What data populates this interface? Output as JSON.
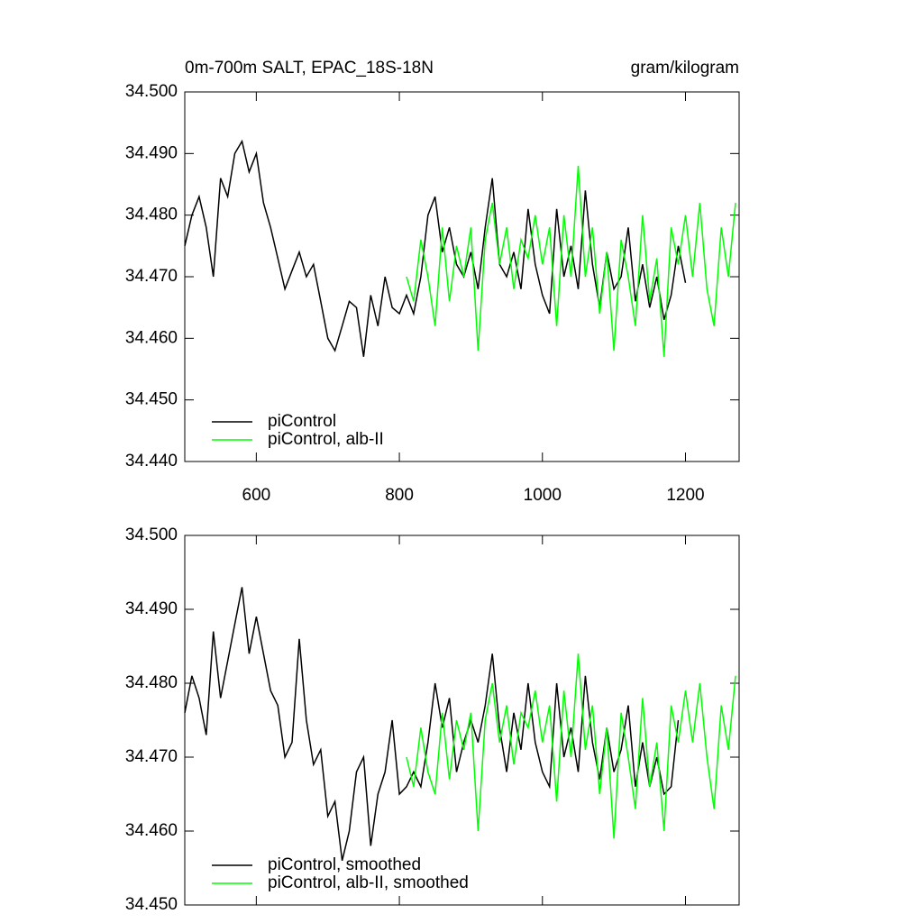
{
  "chart_data": [
    {
      "type": "line",
      "title": "0m-700m SALT, EPAC_18S-18N",
      "units": "gram/kilogram",
      "xlim": [
        500,
        1275
      ],
      "xticks": [
        600,
        800,
        1000,
        1200
      ],
      "xtick_labels": true,
      "ylim": [
        34.44,
        34.5
      ],
      "yticks": [
        {
          "value": 34.44,
          "label": "34.440"
        },
        {
          "value": 34.45,
          "label": "34.450"
        },
        {
          "value": 34.46,
          "label": "34.460"
        },
        {
          "value": 34.47,
          "label": "34.470"
        },
        {
          "value": 34.48,
          "label": "34.480"
        },
        {
          "value": 34.49,
          "label": "34.490"
        },
        {
          "value": 34.5,
          "label": "34.500"
        }
      ],
      "legend": "lower left",
      "series": [
        {
          "name": "piControl",
          "color": "#000000",
          "x": [
            500,
            510,
            520,
            530,
            540,
            550,
            560,
            570,
            580,
            590,
            600,
            610,
            620,
            630,
            640,
            650,
            660,
            670,
            680,
            690,
            700,
            710,
            720,
            730,
            740,
            750,
            760,
            770,
            780,
            790,
            800,
            810,
            820,
            830,
            840,
            850,
            860,
            870,
            880,
            890,
            900,
            910,
            920,
            930,
            940,
            950,
            960,
            970,
            980,
            990,
            1000,
            1010,
            1020,
            1030,
            1040,
            1050,
            1060,
            1070,
            1080,
            1090,
            1100,
            1110,
            1120,
            1130,
            1140,
            1150,
            1160,
            1170,
            1180,
            1190,
            1200
          ],
          "values": [
            34.475,
            34.48,
            34.483,
            34.478,
            34.47,
            34.486,
            34.483,
            34.49,
            34.492,
            34.487,
            34.49,
            34.482,
            34.478,
            34.473,
            34.468,
            34.471,
            34.474,
            34.47,
            34.472,
            34.466,
            34.46,
            34.458,
            34.462,
            34.466,
            34.465,
            34.457,
            34.467,
            34.462,
            34.47,
            34.465,
            34.464,
            34.467,
            34.464,
            34.47,
            34.48,
            34.483,
            34.474,
            34.478,
            34.472,
            34.47,
            34.474,
            34.468,
            34.478,
            34.486,
            34.472,
            34.47,
            34.474,
            34.468,
            34.481,
            34.472,
            34.467,
            34.464,
            34.481,
            34.47,
            34.475,
            34.468,
            34.484,
            34.472,
            34.465,
            34.474,
            34.468,
            34.47,
            34.478,
            34.466,
            34.472,
            34.465,
            34.47,
            34.463,
            34.467,
            34.475,
            34.469
          ]
        },
        {
          "name": "piControl, alb-II",
          "color": "#00ff00",
          "x": [
            810,
            820,
            830,
            840,
            850,
            860,
            870,
            880,
            890,
            900,
            910,
            920,
            930,
            940,
            950,
            960,
            970,
            980,
            990,
            1000,
            1010,
            1020,
            1030,
            1040,
            1050,
            1060,
            1070,
            1080,
            1090,
            1100,
            1110,
            1120,
            1130,
            1140,
            1150,
            1160,
            1170,
            1180,
            1190,
            1200,
            1210,
            1220,
            1230,
            1240,
            1250,
            1260,
            1270
          ],
          "values": [
            34.47,
            34.466,
            34.476,
            34.47,
            34.462,
            34.478,
            34.466,
            34.475,
            34.47,
            34.478,
            34.458,
            34.476,
            34.482,
            34.472,
            34.478,
            34.468,
            34.476,
            34.473,
            34.48,
            34.472,
            34.478,
            34.462,
            34.48,
            34.47,
            34.488,
            34.47,
            34.478,
            34.464,
            34.474,
            34.458,
            34.476,
            34.47,
            34.462,
            34.48,
            34.466,
            34.473,
            34.457,
            34.478,
            34.472,
            34.48,
            34.47,
            34.482,
            34.468,
            34.462,
            34.478,
            34.47,
            34.482
          ]
        }
      ]
    },
    {
      "type": "line",
      "xlim": [
        500,
        1275
      ],
      "xticks": [
        600,
        800,
        1000,
        1200
      ],
      "xtick_labels": false,
      "ylim": [
        34.45,
        34.5
      ],
      "yticks": [
        {
          "value": 34.45,
          "label": "34.450"
        },
        {
          "value": 34.46,
          "label": "34.460"
        },
        {
          "value": 34.47,
          "label": "34.470"
        },
        {
          "value": 34.48,
          "label": "34.480"
        },
        {
          "value": 34.49,
          "label": "34.490"
        },
        {
          "value": 34.5,
          "label": "34.500"
        }
      ],
      "legend": "lower left",
      "series": [
        {
          "name": "piControl, smoothed",
          "color": "#000000",
          "x": [
            500,
            510,
            520,
            530,
            540,
            550,
            560,
            570,
            580,
            590,
            600,
            610,
            620,
            630,
            640,
            650,
            660,
            670,
            680,
            690,
            700,
            710,
            720,
            730,
            740,
            750,
            760,
            770,
            780,
            790,
            800,
            810,
            820,
            830,
            840,
            850,
            860,
            870,
            880,
            890,
            900,
            910,
            920,
            930,
            940,
            950,
            960,
            970,
            980,
            990,
            1000,
            1010,
            1020,
            1030,
            1040,
            1050,
            1060,
            1070,
            1080,
            1090,
            1100,
            1110,
            1120,
            1130,
            1140,
            1150,
            1160,
            1170,
            1180,
            1190
          ],
          "values": [
            34.476,
            34.481,
            34.478,
            34.473,
            34.487,
            34.478,
            34.483,
            34.488,
            34.493,
            34.484,
            34.489,
            34.484,
            34.479,
            34.477,
            34.47,
            34.472,
            34.486,
            34.475,
            34.469,
            34.471,
            34.462,
            34.464,
            34.456,
            34.46,
            34.468,
            34.47,
            34.458,
            34.465,
            34.468,
            34.475,
            34.465,
            34.466,
            34.468,
            34.466,
            34.472,
            34.48,
            34.474,
            34.478,
            34.468,
            34.472,
            34.475,
            34.472,
            34.477,
            34.484,
            34.474,
            34.468,
            34.476,
            34.471,
            34.48,
            34.472,
            34.468,
            34.466,
            34.48,
            34.47,
            34.474,
            34.468,
            34.481,
            34.472,
            34.467,
            34.474,
            34.468,
            34.471,
            34.477,
            34.466,
            34.472,
            34.466,
            34.47,
            34.465,
            34.466,
            34.475
          ]
        },
        {
          "name": "piControl, alb-II, smoothed",
          "color": "#00ff00",
          "x": [
            810,
            820,
            830,
            840,
            850,
            860,
            870,
            880,
            890,
            900,
            910,
            920,
            930,
            940,
            950,
            960,
            970,
            980,
            990,
            1000,
            1010,
            1020,
            1030,
            1040,
            1050,
            1060,
            1070,
            1080,
            1090,
            1100,
            1110,
            1120,
            1130,
            1140,
            1150,
            1160,
            1170,
            1180,
            1190,
            1200,
            1210,
            1220,
            1230,
            1240,
            1250,
            1260,
            1270
          ],
          "values": [
            34.47,
            34.466,
            34.474,
            34.468,
            34.465,
            34.476,
            34.467,
            34.475,
            34.471,
            34.476,
            34.46,
            34.475,
            34.48,
            34.472,
            34.477,
            34.469,
            34.476,
            34.474,
            34.479,
            34.472,
            34.477,
            34.464,
            34.479,
            34.47,
            34.484,
            34.471,
            34.477,
            34.465,
            34.474,
            34.459,
            34.476,
            34.47,
            34.463,
            34.478,
            34.466,
            34.472,
            34.46,
            34.477,
            34.472,
            34.479,
            34.472,
            34.48,
            34.47,
            34.463,
            34.477,
            34.471,
            34.481
          ]
        }
      ]
    }
  ]
}
